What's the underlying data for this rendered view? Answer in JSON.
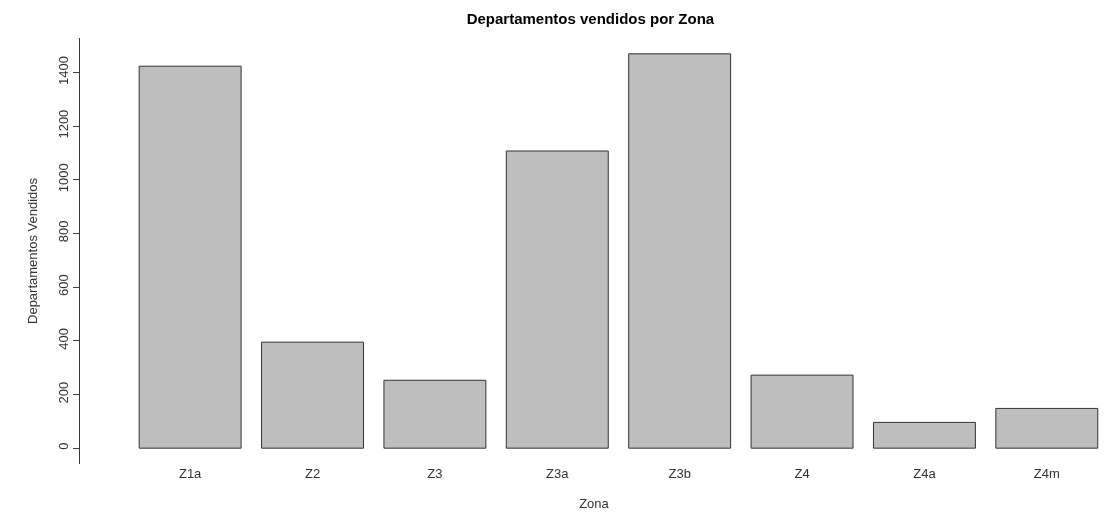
{
  "chart_data": {
    "type": "bar",
    "title": "Departamentos vendidos por Zona",
    "xlabel": "Zona",
    "ylabel": "Departamentos Vendidos",
    "categories": [
      "Z1a",
      "Z2",
      "Z3",
      "Z3a",
      "Z3b",
      "Z4",
      "Z4a",
      "Z4m"
    ],
    "values": [
      1423,
      395,
      253,
      1107,
      1469,
      272,
      96,
      148
    ],
    "color": "#bebebe",
    "ylim": [
      -59,
      1528
    ],
    "yticks": [
      0,
      200,
      400,
      600,
      800,
      1000,
      1200,
      1400
    ],
    "legend": false
  }
}
